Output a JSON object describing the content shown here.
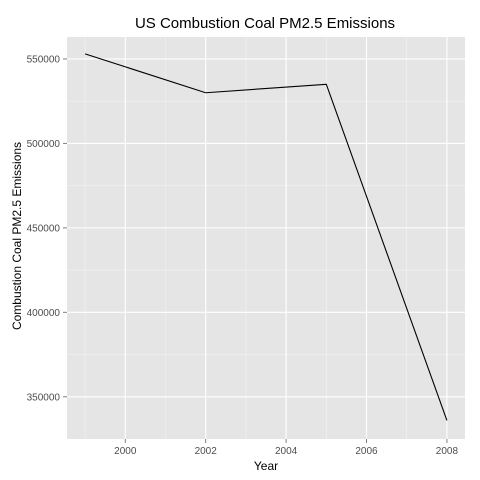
{
  "chart_data": {
    "type": "line",
    "title": "US Combustion Coal PM2.5 Emissions",
    "xlabel": "Year",
    "ylabel": "Combustion Coal PM2.5 Emissions",
    "x": [
      1999,
      2002,
      2005,
      2008
    ],
    "series": [
      {
        "values": [
          553000,
          530000,
          535000,
          336000
        ],
        "color": "#000000"
      }
    ],
    "xlim": [
      1998.55,
      2008.45
    ],
    "ylim": [
      325000,
      563000
    ],
    "x_ticks": [
      2000,
      2002,
      2004,
      2006,
      2008
    ],
    "x_tick_labels": [
      "2000",
      "2002",
      "2004",
      "2006",
      "2008"
    ],
    "y_ticks": [
      350000,
      400000,
      450000,
      500000,
      550000
    ],
    "y_tick_labels": [
      "350000",
      "400000",
      "450000",
      "500000",
      "550000"
    ],
    "grid": true,
    "legend": "none",
    "panel_color": "#e5e5e5",
    "grid_color": "#ffffff"
  }
}
